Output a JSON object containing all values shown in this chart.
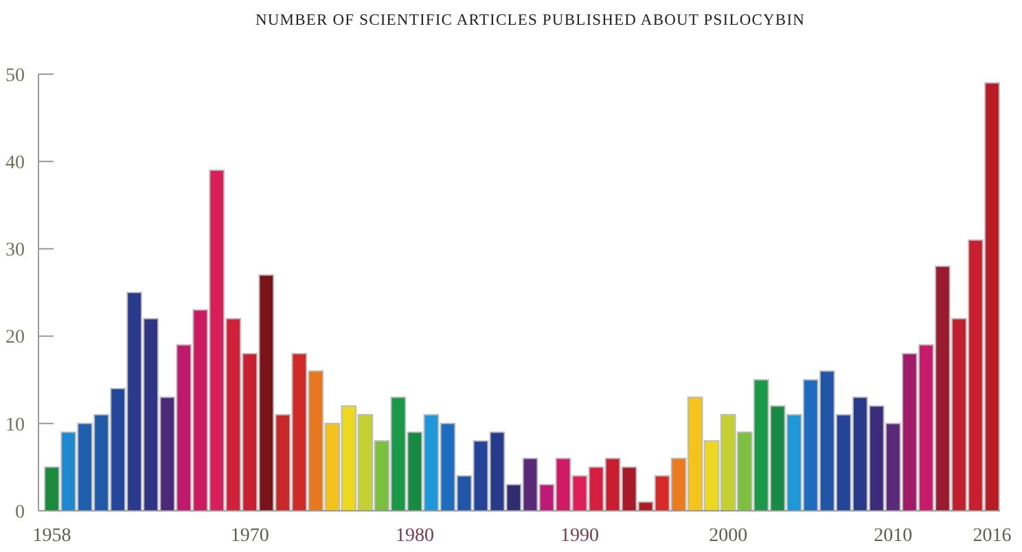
{
  "chart_data": {
    "type": "bar",
    "title": "NUMBER OF SCIENTIFIC ARTICLES PUBLISHED ABOUT PSILOCYBIN",
    "categories": [
      "1958",
      null,
      null,
      null,
      null,
      null,
      null,
      null,
      null,
      null,
      null,
      null,
      "1970",
      null,
      null,
      null,
      null,
      null,
      null,
      null,
      null,
      null,
      "1980",
      null,
      null,
      null,
      null,
      null,
      null,
      null,
      null,
      null,
      "1990",
      null,
      null,
      null,
      null,
      null,
      null,
      null,
      null,
      "2000",
      null,
      null,
      null,
      null,
      null,
      null,
      null,
      null,
      null,
      "2010",
      null,
      null,
      null,
      null,
      null,
      "2016"
    ],
    "values": [
      5,
      9,
      10,
      11,
      14,
      25,
      22,
      13,
      19,
      23,
      39,
      22,
      18,
      27,
      11,
      18,
      16,
      10,
      12,
      11,
      8,
      13,
      9,
      11,
      10,
      4,
      8,
      9,
      3,
      6,
      3,
      6,
      4,
      5,
      6,
      5,
      1,
      4,
      6,
      13,
      8,
      11,
      9,
      15,
      12,
      11,
      15,
      16,
      11,
      13,
      12,
      10,
      18,
      19,
      28,
      22,
      31,
      49
    ],
    "colors": [
      "#1a8a3c",
      "#1e88d0",
      "#1f5fb0",
      "#1e5aa8",
      "#22479a",
      "#2a3a8c",
      "#2f3585",
      "#4a2a78",
      "#c0186a",
      "#cc1a60",
      "#d81e5b",
      "#d0203a",
      "#c82030",
      "#7a1418",
      "#c82828",
      "#d02a28",
      "#e8781e",
      "#f2c21a",
      "#ecd81e",
      "#c4d030",
      "#7cc040",
      "#1a9a48",
      "#188a44",
      "#1e98d8",
      "#1e6cc0",
      "#2055a8",
      "#24449a",
      "#283a8a",
      "#302c70",
      "#5a2a7a",
      "#c01a78",
      "#d01a66",
      "#e01e58",
      "#d81e40",
      "#c81e30",
      "#a81a28",
      "#b01c24",
      "#d82a28",
      "#ec7a1e",
      "#f4c41a",
      "#ecd820",
      "#c4d030",
      "#7cc040",
      "#1a9a48",
      "#188a44",
      "#1e98d8",
      "#1e6cc0",
      "#2055a8",
      "#24449a",
      "#283a8a",
      "#3a2c78",
      "#5a2a7a",
      "#a01a68",
      "#c81a6a",
      "#9a1a30",
      "#c0202e",
      "#c81e2e",
      "#b81c24"
    ],
    "ylim": [
      0,
      50
    ],
    "yticks": [
      0,
      10,
      20,
      30,
      40,
      50
    ],
    "grid": false
  }
}
